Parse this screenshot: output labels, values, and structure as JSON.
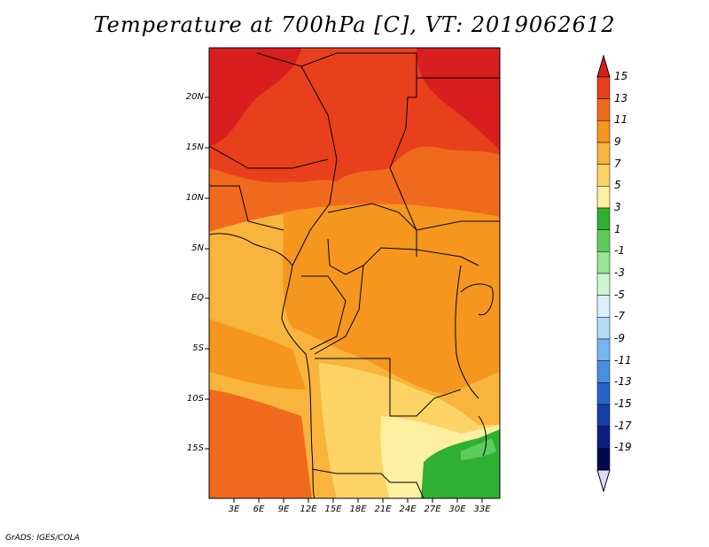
{
  "title": "Temperature at 700hPa [C], VT: 2019062612",
  "credit": "GrADS: IGES/COLA",
  "map": {
    "region": "Central Africa",
    "lon_range": [
      0,
      35
    ],
    "lat_range": [
      -20,
      25
    ],
    "lat_labels": [
      "20N",
      "15N",
      "10N",
      "5N",
      "EQ",
      "5S",
      "10S",
      "15S"
    ],
    "lon_labels": [
      "3E",
      "6E",
      "9E",
      "12E",
      "15E",
      "18E",
      "21E",
      "24E",
      "27E",
      "30E",
      "33E"
    ]
  },
  "colorbar": {
    "labels": [
      "15",
      "13",
      "11",
      "9",
      "7",
      "5",
      "3",
      "1",
      "-1",
      "-3",
      "-5",
      "-7",
      "-9",
      "-11",
      "-13",
      "-15",
      "-17",
      "-19"
    ],
    "colors": [
      "#d81e1e",
      "#e8401c",
      "#f06a1e",
      "#f5961e",
      "#f8b43c",
      "#fcd466",
      "#fcf0a0",
      "#30b030",
      "#5ccc5c",
      "#96e696",
      "#d0f4d0",
      "#dcf0fc",
      "#b4dcf8",
      "#78b6ee",
      "#4890e0",
      "#2864c8",
      "#1440a8",
      "#0c1e80",
      "#000a50",
      "#dcdcfa"
    ]
  }
}
